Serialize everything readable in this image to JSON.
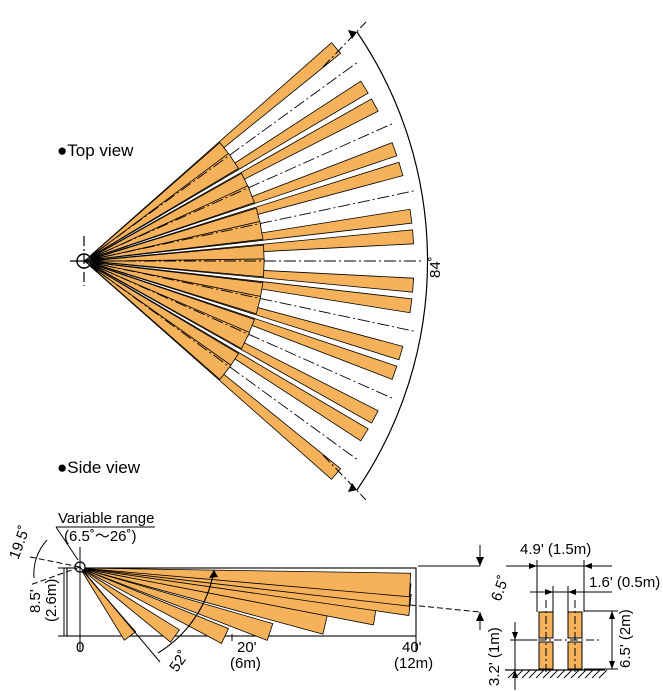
{
  "top_view": {
    "title": "Top view",
    "bullet": "●",
    "angle_label": "84˚"
  },
  "side_view": {
    "title": "Side view",
    "bullet": "●",
    "variable_range_label": "Variable range",
    "variable_range_value": "(6.5˚～26˚)",
    "tilt_angle": "19.5˚",
    "height_ft": "8.5'",
    "height_m": "(2.6m)",
    "spread_angle": "52˚",
    "beam_angle": "6.5˚",
    "dist_0": "0",
    "dist_20_ft": "20'",
    "dist_20_m": "(6m)",
    "dist_40_ft": "40'",
    "dist_40_m": "(12m)"
  },
  "target_detail": {
    "width_label": "4.9' (1.5m)",
    "gap_label": "1.6' (0.5m)",
    "height_label": "6.5' (2m)",
    "lower_label": "3.2' (1m)"
  },
  "colors": {
    "beam_fill": "#f5b25a",
    "line": "#000000"
  }
}
